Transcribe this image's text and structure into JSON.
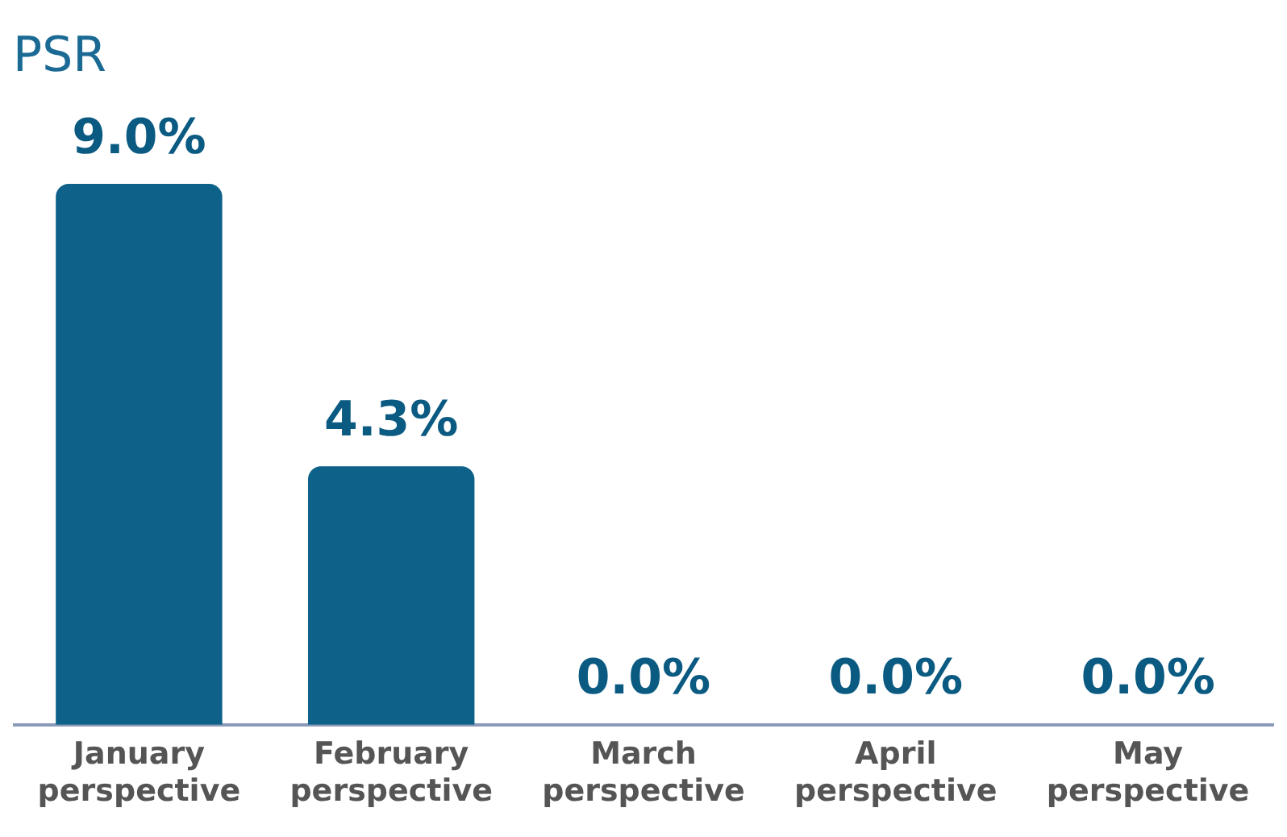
{
  "chart_data": {
    "type": "bar",
    "title": "PSR",
    "categories": [
      "January perspective",
      "February perspective",
      "March perspective",
      "April perspective",
      "May perspective"
    ],
    "values": [
      9.0,
      4.3,
      0.0,
      0.0,
      0.0
    ],
    "value_labels": [
      "9.0%",
      "4.3%",
      "0.0%",
      "0.0%",
      "0.0%"
    ],
    "color": "#0e6289",
    "grid": false,
    "legend": false
  }
}
